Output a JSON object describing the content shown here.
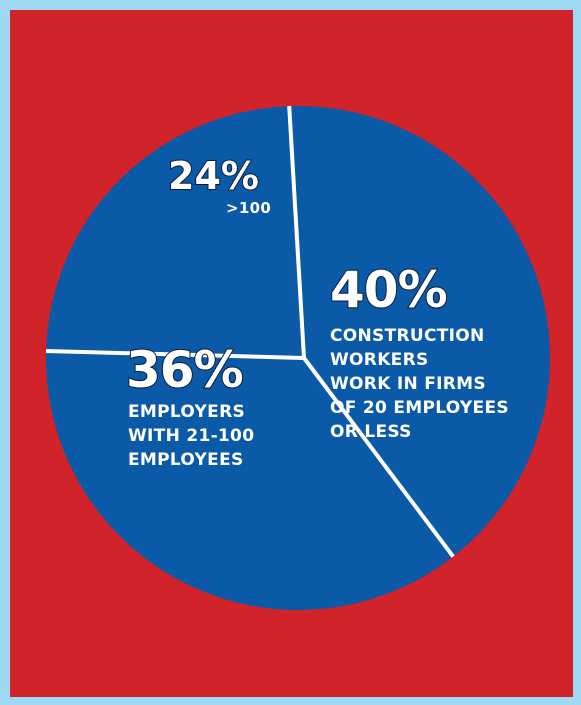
{
  "colors": {
    "outer_border": "#9ed8f2",
    "background": "#d1232a",
    "pie_fill": "#0a5aa8",
    "divider": "#ffffff",
    "text": "#ffffff"
  },
  "chart_data": {
    "type": "pie",
    "title": "",
    "slices": [
      {
        "value": 40,
        "label": "40%",
        "description": "CONSTRUCTION\nWORKERS\nWORK IN FIRMS\nOF 20 EMPLOYEES\nOR LESS"
      },
      {
        "value": 36,
        "label": "36%",
        "description": "EMPLOYERS\nWITH 21-100\nEMPLOYEES"
      },
      {
        "value": 24,
        "label": "24%",
        "description": ">100"
      }
    ],
    "legend": "none"
  }
}
